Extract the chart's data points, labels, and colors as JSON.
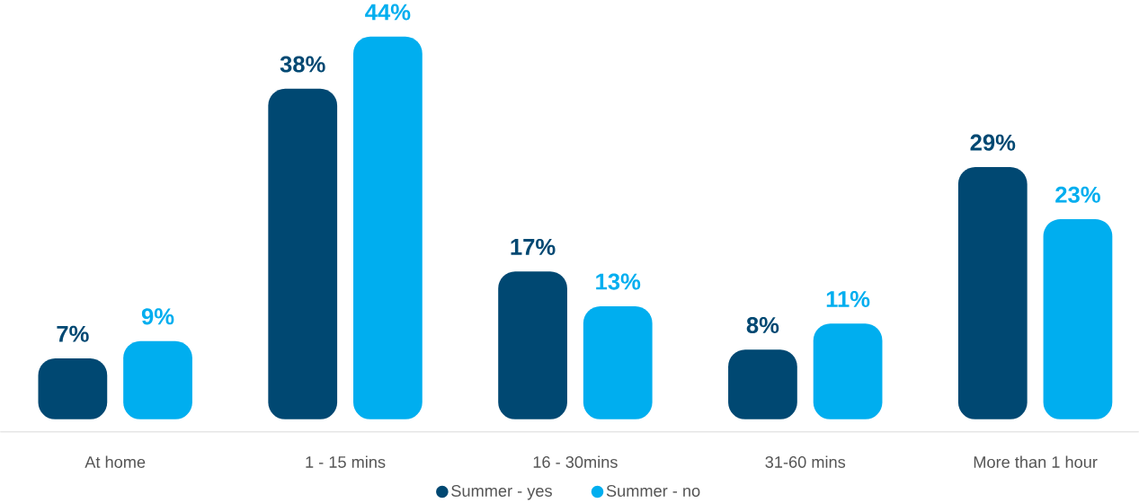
{
  "chart_data": {
    "type": "bar",
    "categories": [
      "At home",
      "1 - 15 mins",
      "16 - 30mins",
      "31-60 mins",
      "More than 1 hour"
    ],
    "series": [
      {
        "name": "Summer - yes",
        "color": "#004872",
        "values": [
          7,
          38,
          17,
          8,
          29
        ],
        "value_labels": [
          "7%",
          "38%",
          "17%",
          "8%",
          "29%"
        ]
      },
      {
        "name": "Summer - no",
        "color": "#00aeef",
        "values": [
          9,
          44,
          13,
          11,
          23
        ],
        "value_labels": [
          "9%",
          "44%",
          "13%",
          "11%",
          "23%"
        ]
      }
    ],
    "legend": "bottom"
  }
}
